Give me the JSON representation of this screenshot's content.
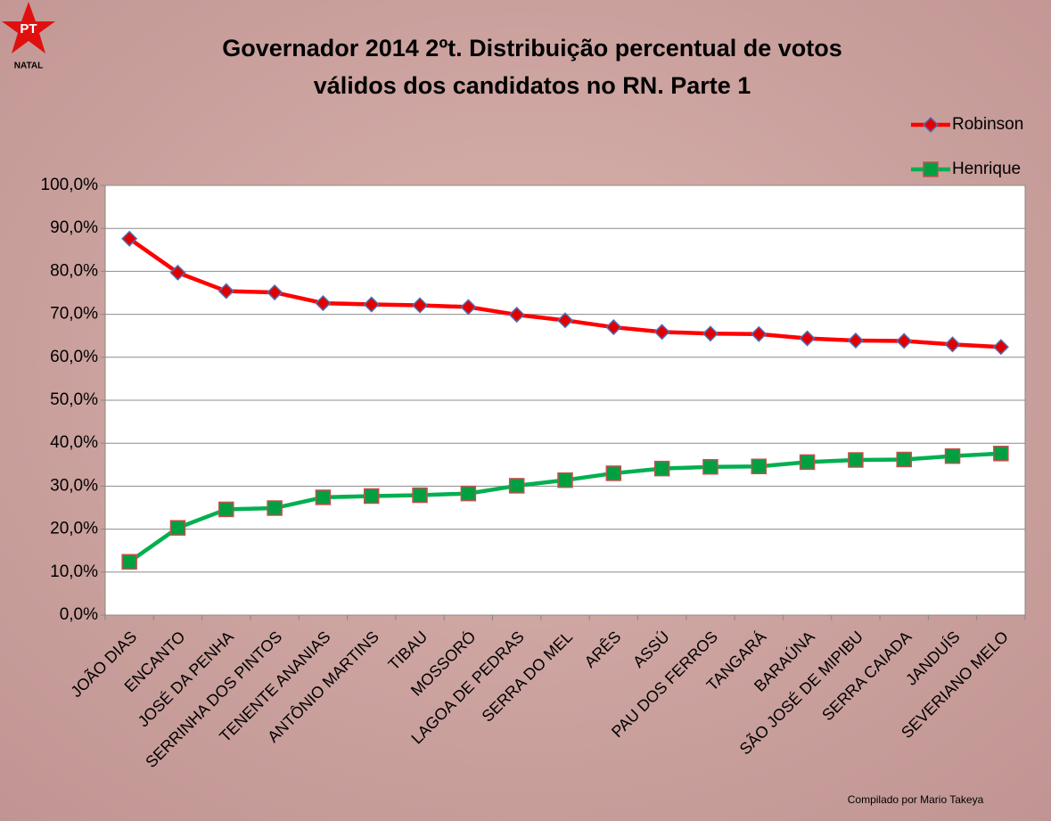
{
  "chart_data": {
    "type": "line",
    "title": [
      "Governador 2014 2ºt. Distribuição percentual de votos",
      "válidos dos candidatos no RN. Parte 1"
    ],
    "logo": {
      "text": "PT",
      "subtext": "NATAL"
    },
    "note": "Compilado por Mario Takeya",
    "categories": [
      "JOÃO DIAS",
      "ENCANTO",
      "JOSÉ DA PENHA",
      "SERRINHA DOS PINTOS",
      "TENENTE ANANIAS",
      "ANTÔNIO MARTINS",
      "TIBAU",
      "MOSSORÓ",
      "LAGOA DE PEDRAS",
      "SERRA DO MEL",
      "ARÊS",
      "ASSÚ",
      "PAU DOS FERROS",
      "TANGARÁ",
      "BARAÚNA",
      "SÃO JOSÉ DE MIPIBU",
      "SERRA CAIADA",
      "JANDUÍS",
      "SEVERIANO MELO"
    ],
    "series": [
      {
        "name": "Robinson",
        "color": "#ff0000",
        "marker": "diamond",
        "marker_color": "#e00000",
        "marker_edge": "#4f6fb5",
        "values": [
          87.6,
          79.7,
          75.4,
          75.1,
          72.6,
          72.3,
          72.1,
          71.7,
          69.9,
          68.6,
          67.0,
          65.9,
          65.5,
          65.4,
          64.4,
          63.9,
          63.8,
          63.0,
          62.4
        ]
      },
      {
        "name": "Henrique",
        "color": "#00b050",
        "marker": "square",
        "marker_color": "#00a040",
        "marker_edge": "#c0504d",
        "values": [
          12.4,
          20.3,
          24.6,
          24.9,
          27.4,
          27.7,
          27.9,
          28.3,
          30.1,
          31.4,
          33.0,
          34.1,
          34.5,
          34.6,
          35.6,
          36.1,
          36.2,
          37.0,
          37.6
        ]
      }
    ],
    "ylim": [
      0,
      100
    ],
    "yticks": [
      {
        "value": 0,
        "label": "0,0%"
      },
      {
        "value": 10,
        "label": "10,0%"
      },
      {
        "value": 20,
        "label": "20,0%"
      },
      {
        "value": 30,
        "label": "30,0%"
      },
      {
        "value": 40,
        "label": "40,0%"
      },
      {
        "value": 50,
        "label": "50,0%"
      },
      {
        "value": 60,
        "label": "60,0%"
      },
      {
        "value": 70,
        "label": "70,0%"
      },
      {
        "value": 80,
        "label": "80,0%"
      },
      {
        "value": 90,
        "label": "90,0%"
      },
      {
        "value": 100,
        "label": "100,0%"
      }
    ],
    "grid": true,
    "legend": "top-right"
  }
}
